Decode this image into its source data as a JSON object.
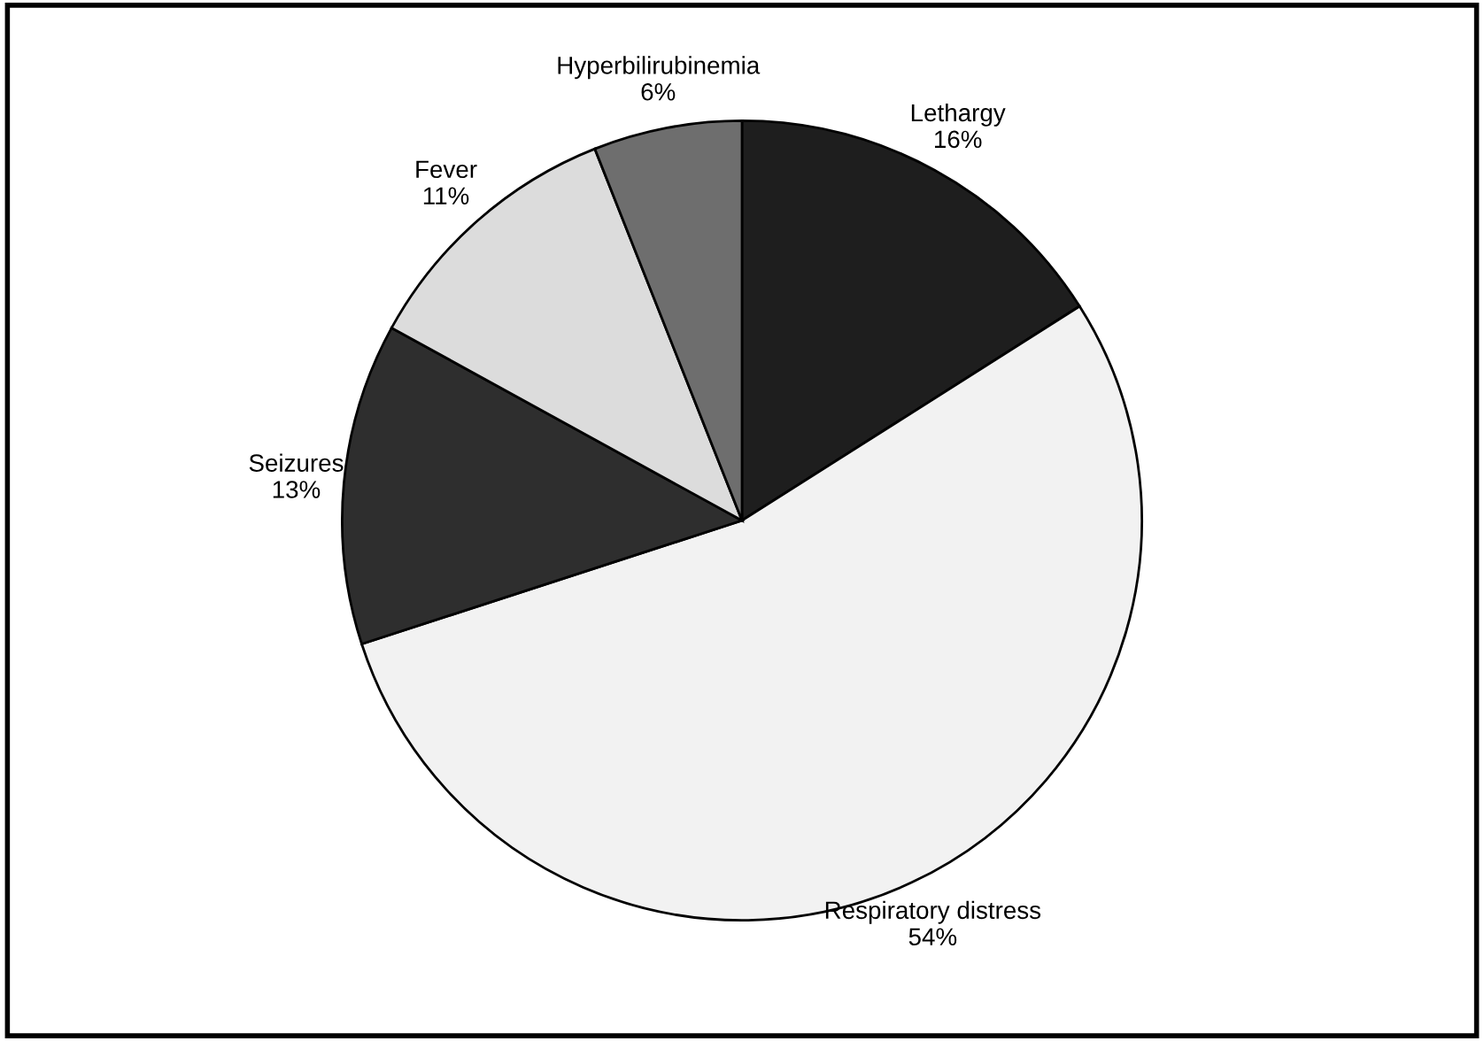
{
  "chart_data": {
    "type": "pie",
    "categories": [
      "Lethargy",
      "Respiratory distress",
      "Seizures",
      "Fever",
      "Hyperbilirubinemia"
    ],
    "values": [
      16,
      54,
      13,
      11,
      6
    ],
    "value_labels": [
      "16%",
      "54%",
      "13%",
      "11%",
      "6%"
    ],
    "colors": [
      "#1e1e1e",
      "#f2f2f2",
      "#2e2e2e",
      "#dcdcdc",
      "#6e6e6e"
    ]
  }
}
